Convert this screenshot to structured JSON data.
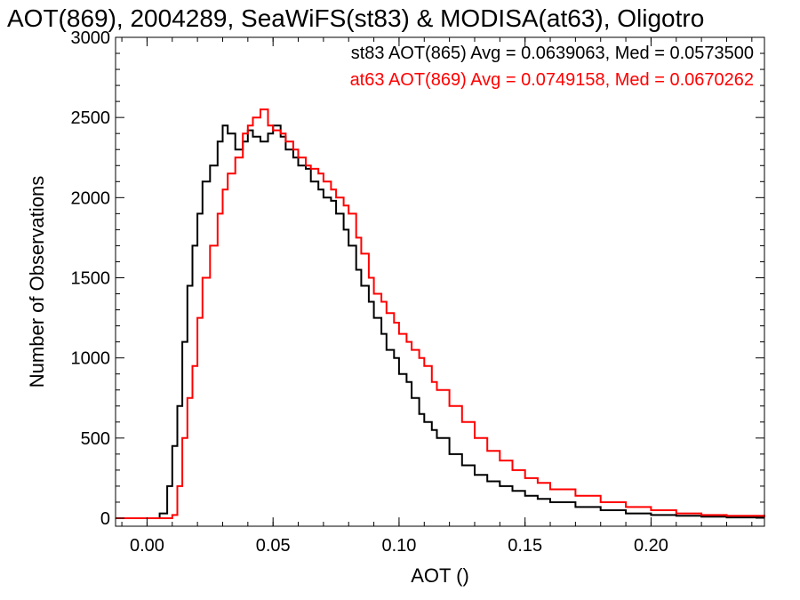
{
  "chart_data": {
    "type": "line",
    "title": "AOT(869), 2004289, SeaWiFS(st83) & MODISA(at63), Oligotro",
    "xlabel": "AOT ()",
    "ylabel": "Number of Observations",
    "xlim": [
      -0.0125,
      0.245
    ],
    "ylim": [
      -50,
      3000
    ],
    "xticks": [
      0.0,
      0.05,
      0.1,
      0.15,
      0.2
    ],
    "xticklabels": [
      "0.00",
      "0.05",
      "0.10",
      "0.15",
      "0.20"
    ],
    "yticks": [
      0,
      500,
      1000,
      1500,
      2000,
      2500,
      3000
    ],
    "yticklabels": [
      "0",
      "500",
      "1000",
      "1500",
      "2000",
      "2500",
      "3000"
    ],
    "grid": false,
    "legend_position": "top-right",
    "series": [
      {
        "name": "st83 AOT(865) Avg = 0.0639063, Med = 0.0573500",
        "color": "#000000",
        "x": [
          -0.0125,
          0.0,
          0.005,
          0.008,
          0.01,
          0.012,
          0.014,
          0.016,
          0.018,
          0.02,
          0.022,
          0.025,
          0.028,
          0.03,
          0.032,
          0.035,
          0.038,
          0.04,
          0.042,
          0.045,
          0.048,
          0.05,
          0.053,
          0.055,
          0.058,
          0.06,
          0.063,
          0.065,
          0.068,
          0.07,
          0.073,
          0.075,
          0.078,
          0.08,
          0.083,
          0.085,
          0.088,
          0.09,
          0.093,
          0.095,
          0.098,
          0.1,
          0.103,
          0.105,
          0.108,
          0.11,
          0.113,
          0.115,
          0.12,
          0.125,
          0.13,
          0.135,
          0.14,
          0.145,
          0.15,
          0.155,
          0.16,
          0.17,
          0.18,
          0.19,
          0.2,
          0.21,
          0.22,
          0.23,
          0.245
        ],
        "y": [
          0,
          0,
          30,
          200,
          450,
          700,
          1100,
          1450,
          1700,
          1900,
          2100,
          2200,
          2350,
          2450,
          2400,
          2300,
          2350,
          2420,
          2380,
          2350,
          2400,
          2450,
          2380,
          2300,
          2250,
          2200,
          2180,
          2100,
          2050,
          2000,
          1980,
          1900,
          1800,
          1700,
          1550,
          1450,
          1350,
          1250,
          1150,
          1050,
          1000,
          900,
          850,
          750,
          650,
          600,
          550,
          500,
          400,
          330,
          270,
          230,
          200,
          170,
          140,
          120,
          100,
          70,
          50,
          30,
          20,
          15,
          10,
          5,
          5
        ]
      },
      {
        "name": "at63 AOT(869) Avg = 0.0749158, Med = 0.0670262",
        "color": "#ff0000",
        "x": [
          -0.0125,
          0.0,
          0.005,
          0.01,
          0.012,
          0.014,
          0.016,
          0.018,
          0.02,
          0.022,
          0.025,
          0.028,
          0.03,
          0.032,
          0.035,
          0.038,
          0.04,
          0.042,
          0.045,
          0.048,
          0.05,
          0.053,
          0.055,
          0.058,
          0.06,
          0.063,
          0.065,
          0.068,
          0.07,
          0.073,
          0.075,
          0.078,
          0.08,
          0.083,
          0.085,
          0.088,
          0.09,
          0.093,
          0.095,
          0.098,
          0.1,
          0.103,
          0.105,
          0.108,
          0.11,
          0.113,
          0.115,
          0.12,
          0.125,
          0.13,
          0.135,
          0.14,
          0.145,
          0.15,
          0.155,
          0.16,
          0.17,
          0.18,
          0.19,
          0.2,
          0.21,
          0.22,
          0.23,
          0.245
        ],
        "y": [
          0,
          0,
          0,
          20,
          200,
          500,
          750,
          950,
          1250,
          1500,
          1700,
          1900,
          2050,
          2150,
          2250,
          2400,
          2450,
          2500,
          2550,
          2450,
          2420,
          2400,
          2350,
          2300,
          2250,
          2200,
          2180,
          2150,
          2100,
          2050,
          2000,
          1950,
          1900,
          1750,
          1650,
          1500,
          1400,
          1350,
          1280,
          1220,
          1150,
          1100,
          1050,
          1000,
          950,
          850,
          800,
          700,
          600,
          500,
          420,
          360,
          300,
          250,
          220,
          180,
          140,
          100,
          70,
          50,
          30,
          20,
          15,
          5
        ]
      }
    ]
  }
}
